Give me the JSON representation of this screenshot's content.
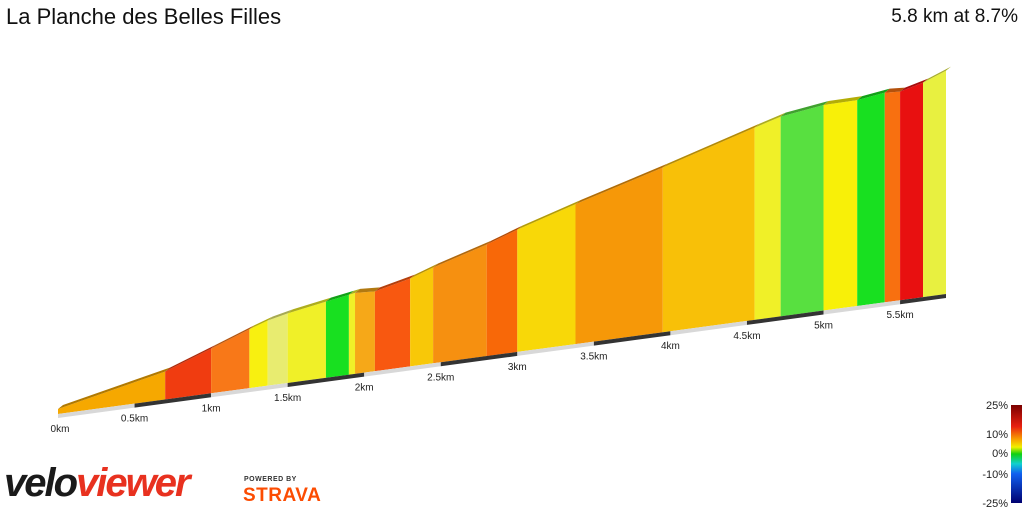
{
  "header": {
    "title": "La Planche des Belles Filles",
    "summary": "5.8 km at 8.7%"
  },
  "branding": {
    "logo_part1": "velo",
    "logo_part2": "viewer",
    "powered_by": "POWERED BY",
    "strava": "STRAVA",
    "logo_icon": "veloviewer-wordmark",
    "strava_icon": "strava-wordmark"
  },
  "colors": {
    "logo_dark": "#1a1a1a",
    "logo_red": "#e8311f",
    "strava_orange": "#fc4c02"
  },
  "chart_data": {
    "type": "area",
    "title": "La Planche des Belles Filles",
    "xlabel": "",
    "ylabel": "",
    "x_unit": "km",
    "xlim": [
      0,
      5.8
    ],
    "x_ticks": [
      "0km",
      "0.5km",
      "1km",
      "1.5km",
      "2km",
      "2.5km",
      "3km",
      "3.5km",
      "4km",
      "4.5km",
      "5km",
      "5.5km"
    ],
    "x_tick_values": [
      0,
      0.5,
      1,
      1.5,
      2,
      2.5,
      3,
      3.5,
      4,
      4.5,
      5,
      5.5
    ],
    "segments": [
      {
        "start": 0.0,
        "end": 0.7,
        "color": "#f6a800"
      },
      {
        "start": 0.7,
        "end": 1.0,
        "color": "#f03c10"
      },
      {
        "start": 1.0,
        "end": 1.25,
        "color": "#f87818"
      },
      {
        "start": 1.25,
        "end": 1.37,
        "color": "#f8f010"
      },
      {
        "start": 1.37,
        "end": 1.5,
        "color": "#e8ec70"
      },
      {
        "start": 1.5,
        "end": 1.75,
        "color": "#f0f028"
      },
      {
        "start": 1.75,
        "end": 1.9,
        "color": "#18e020"
      },
      {
        "start": 1.9,
        "end": 1.94,
        "color": "#f0f028"
      },
      {
        "start": 1.94,
        "end": 2.07,
        "color": "#f6a818"
      },
      {
        "start": 2.07,
        "end": 2.3,
        "color": "#f85810"
      },
      {
        "start": 2.3,
        "end": 2.45,
        "color": "#f8c808"
      },
      {
        "start": 2.45,
        "end": 2.8,
        "color": "#f69010"
      },
      {
        "start": 2.8,
        "end": 3.0,
        "color": "#f86808"
      },
      {
        "start": 3.0,
        "end": 3.38,
        "color": "#f8d808"
      },
      {
        "start": 3.38,
        "end": 3.95,
        "color": "#f69808"
      },
      {
        "start": 3.95,
        "end": 4.55,
        "color": "#f8c008"
      },
      {
        "start": 4.55,
        "end": 4.72,
        "color": "#f0f028"
      },
      {
        "start": 4.72,
        "end": 5.0,
        "color": "#58e040"
      },
      {
        "start": 5.0,
        "end": 5.22,
        "color": "#f8f008"
      },
      {
        "start": 5.22,
        "end": 5.4,
        "color": "#18e020"
      },
      {
        "start": 5.4,
        "end": 5.5,
        "color": "#f87010"
      },
      {
        "start": 5.5,
        "end": 5.65,
        "color": "#e81010"
      },
      {
        "start": 5.65,
        "end": 5.8,
        "color": "#e8f040"
      }
    ],
    "legend": {
      "placement": "bottom-right",
      "labels": [
        "25%",
        "10%",
        "0%",
        "-10%",
        "-25%"
      ],
      "values": [
        25,
        10,
        0,
        -10,
        -25
      ]
    }
  }
}
